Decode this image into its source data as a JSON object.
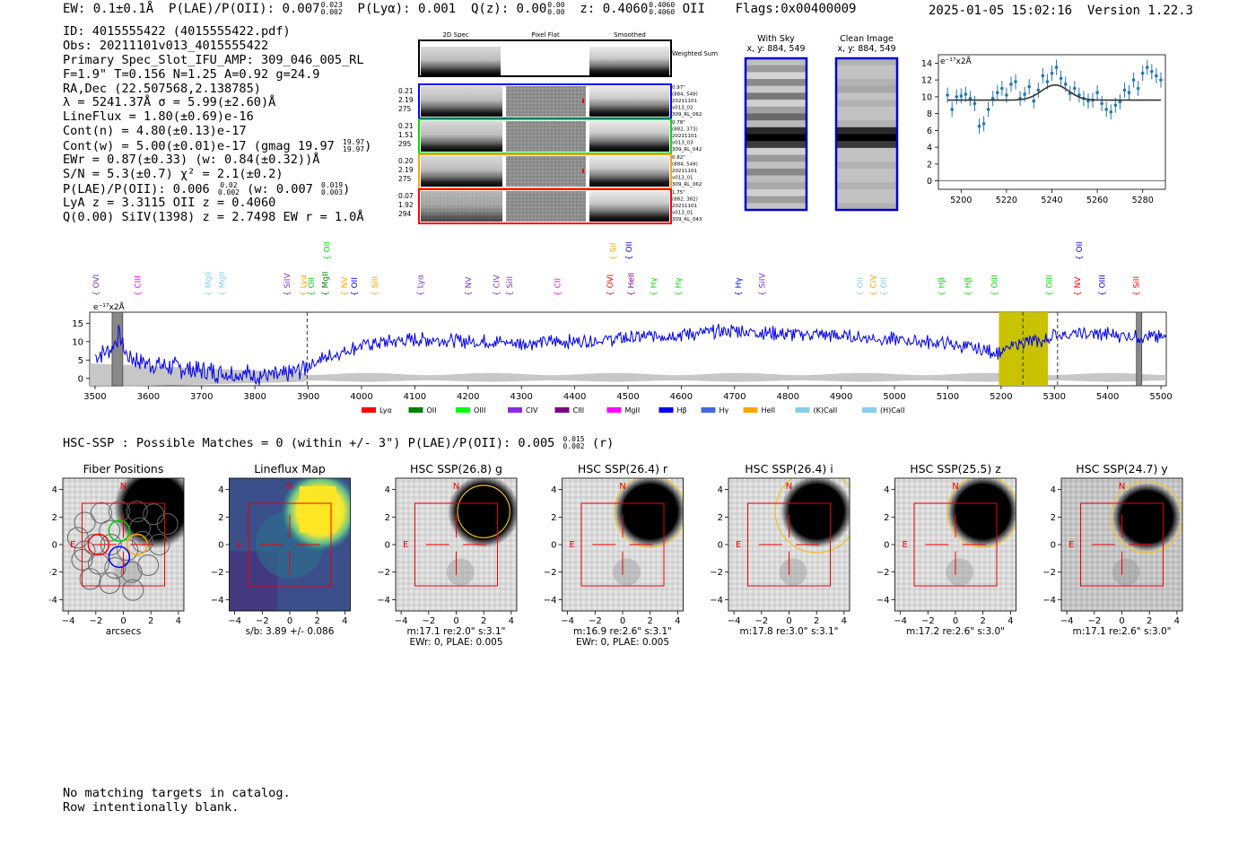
{
  "header": {
    "ew": "EW: 0.1±0.1Å",
    "plae_label": "P(LAE)/P(OII): 0.007",
    "plae_hi": "0.023",
    "plae_lo": "0.002",
    "plya": "P(Lyα): 0.001",
    "qz_label": "Q(z): 0.00",
    "qz_hi": "0.00",
    "qz_lo": "0.00",
    "z_label": "z: 0.4060",
    "z_hi": "0.4060",
    "z_lo": "0.4060",
    "z_line": "OII",
    "flags": "Flags:0x00400009",
    "timestamp": "2025-01-05 15:02:16",
    "version": "Version 1.22.3"
  },
  "info": {
    "id": "ID: 4015555422 (4015555422.pdf)",
    "obs": "Obs: 20211101v013_4015555422",
    "primary": "Primary Spec_Slot_IFU_AMP: 309_046_005_RL",
    "params": "F=1.9\"  T=0.156  N=1.25  A=0.92  g=24.9",
    "radec": "RA,Dec (22.507568,2.138785)",
    "lambda": "λ = 5241.37Å  σ = 5.99(±2.60)Å",
    "lineflux": "LineFlux = 1.80(±0.69)e-16",
    "contn": "Cont(n) = 4.80(±0.13)e-17",
    "contw": "Cont(w) = 5.00(±0.01)e-17 (gmag 19.97",
    "contw_hi": "19.97",
    "contw_lo": "19.97",
    "ewr": "EWr = 0.87(±0.33) (w: 0.84(±0.32))Å",
    "sn": "S/N = 5.3(±0.7)  χ² = 2.1(±0.2)",
    "plae": "P(LAE)/P(OII): 0.006",
    "plae_hi": "0.02",
    "plae_lo": "0.002",
    "plae_w": "(w: 0.007",
    "plae_w_hi": "0.019",
    "plae_w_lo": "0.003",
    "lya": "LyA z = 3.3115  OII z = 0.4060",
    "q": "Q(0.00) SiIV(1398) z = 2.7498  EW r = 1.0Å"
  },
  "cutouts": {
    "col_titles": [
      "2D Spec",
      "Pixel Flat",
      "Smoothed"
    ],
    "weighted_label": "Weighted Sum",
    "rows": [
      {
        "color": "#0000ff",
        "left": [
          "0.21",
          "2.19",
          "275"
        ],
        "right": [
          "0.97\"",
          "(884, 549)",
          "20211101",
          "v013_02",
          "309_RL_062"
        ]
      },
      {
        "color": "#00dd00",
        "left": [
          "0.21",
          "1.51",
          "295"
        ],
        "right": [
          "0.78\"",
          "(882, 373)",
          "20211101",
          "v013_03",
          "309_RL_042"
        ]
      },
      {
        "color": "#ffa500",
        "left": [
          "0.20",
          "2.19",
          "275"
        ],
        "right": [
          "0.82\"",
          "(884, 549)",
          "20211101",
          "v013_01",
          "309_RL_062"
        ]
      },
      {
        "color": "#ff0000",
        "left": [
          "0.07",
          "1.92",
          "294"
        ],
        "right": [
          "1.75\"",
          "(882, 382)",
          "20211101",
          "v013_01",
          "309_RL_043"
        ]
      }
    ]
  },
  "sky": {
    "with_sky_title": "With Sky",
    "with_sky_coords": "x, y: 884, 549",
    "clean_title": "Clean Image",
    "clean_coords": "x, y: 884, 549"
  },
  "chart_data": [
    {
      "type": "scatter",
      "title": "",
      "ylabel": "e⁻¹⁷x2Å",
      "xlim": [
        5190,
        5290
      ],
      "ylim": [
        -1,
        15
      ],
      "xticks": [
        5200,
        5220,
        5240,
        5260,
        5280
      ],
      "yticks": [
        0,
        2,
        4,
        6,
        8,
        10,
        12,
        14
      ],
      "x": [
        5194,
        5196,
        5198,
        5200,
        5202,
        5204,
        5206,
        5208,
        5210,
        5212,
        5214,
        5216,
        5218,
        5220,
        5222,
        5224,
        5226,
        5228,
        5230,
        5232,
        5234,
        5236,
        5238,
        5240,
        5242,
        5244,
        5246,
        5248,
        5250,
        5252,
        5254,
        5256,
        5258,
        5260,
        5262,
        5264,
        5266,
        5268,
        5270,
        5272,
        5274,
        5276,
        5278,
        5280,
        5282,
        5284,
        5286,
        5288
      ],
      "y": [
        10.2,
        8.5,
        10.0,
        10.1,
        10.3,
        9.8,
        9.2,
        6.5,
        6.8,
        8.5,
        9.8,
        10.5,
        11.0,
        10.2,
        11.5,
        11.8,
        9.8,
        10.3,
        11.2,
        9.5,
        10.8,
        12.5,
        11.8,
        12.8,
        13.5,
        12.2,
        11.5,
        10.4,
        11.0,
        10.2,
        9.8,
        9.5,
        9.6,
        10.5,
        9.2,
        8.5,
        8.2,
        9.0,
        9.4,
        10.8,
        10.5,
        12.0,
        11.0,
        12.8,
        13.5,
        13.0,
        12.5,
        12.0
      ],
      "fit": {
        "continuum": 9.6,
        "amplitude": 1.8,
        "center": 5241.37,
        "sigma": 5.99
      }
    },
    {
      "type": "line",
      "title": "",
      "ylabel": "e⁻¹⁷x2Å",
      "xlim": [
        3490,
        5510
      ],
      "ylim": [
        -2,
        18
      ],
      "xticks": [
        3500,
        3600,
        3700,
        3800,
        3900,
        4000,
        4100,
        4200,
        4300,
        4400,
        4500,
        4600,
        4700,
        4800,
        4900,
        5000,
        5100,
        5200,
        5300,
        5400,
        5500
      ],
      "yticks": [
        0,
        5,
        10,
        15
      ],
      "highlight_range": [
        5196,
        5288
      ],
      "dashed_lines": [
        3898,
        5241,
        5306
      ],
      "masked_ranges": [
        [
          3532,
          3552
        ],
        [
          5454,
          5464
        ]
      ],
      "lines": [
        {
          "name": "OVI",
          "x": 3502,
          "color": "#7b2fbf",
          "level": 0
        },
        {
          "name": "CIII",
          "x": 3580,
          "color": "#ff00ff",
          "level": 0
        },
        {
          "name": "MgII",
          "x": 3712,
          "color": "#87ceeb",
          "level": 0
        },
        {
          "name": "MgII",
          "x": 3738,
          "color": "#87ceeb",
          "level": 0
        },
        {
          "name": "SiIV",
          "x": 3860,
          "color": "#7b2fbf",
          "level": 0
        },
        {
          "name": "Lyα",
          "x": 3891,
          "color": "#ffa500",
          "level": 0
        },
        {
          "name": "OII",
          "x": 3906,
          "color": "#00cc00",
          "level": 0
        },
        {
          "name": "MgII",
          "x": 3932,
          "color": "#008000",
          "level": 0
        },
        {
          "name": "OII",
          "x": 3935,
          "color": "#00dd00",
          "level": 1
        },
        {
          "name": "NV",
          "x": 3968,
          "color": "#ffa500",
          "level": 0
        },
        {
          "name": "OII",
          "x": 3987,
          "color": "#0000ff",
          "level": 0
        },
        {
          "name": "SiII",
          "x": 4025,
          "color": "#ffa500",
          "level": 0
        },
        {
          "name": "Lyα",
          "x": 4110,
          "color": "#7b2fbf",
          "level": 0
        },
        {
          "name": "NV",
          "x": 4200,
          "color": "#7b2fbf",
          "level": 0
        },
        {
          "name": "CIV",
          "x": 4253,
          "color": "#7b2fbf",
          "level": 0
        },
        {
          "name": "SiII",
          "x": 4278,
          "color": "#7b2fbf",
          "level": 0
        },
        {
          "name": "CII",
          "x": 4368,
          "color": "#ff00ff",
          "level": 0
        },
        {
          "name": "OVI",
          "x": 4466,
          "color": "#ff0000",
          "level": 0
        },
        {
          "name": "SiIV",
          "x": 4472,
          "color": "#ffa500",
          "level": 1
        },
        {
          "name": "OII",
          "x": 4502,
          "color": "#0000ff",
          "level": 1
        },
        {
          "name": "HeII",
          "x": 4506,
          "color": "#800080",
          "level": 0
        },
        {
          "name": "Hγ",
          "x": 4548,
          "color": "#00dd00",
          "level": 0
        },
        {
          "name": "Hγ",
          "x": 4594,
          "color": "#00dd00",
          "level": 0
        },
        {
          "name": "Hγ",
          "x": 4707,
          "color": "#0000ff",
          "level": 0
        },
        {
          "name": "SiIV",
          "x": 4752,
          "color": "#7b2fbf",
          "level": 0
        },
        {
          "name": "OII",
          "x": 4935,
          "color": "#87ceeb",
          "level": 0
        },
        {
          "name": "CIV",
          "x": 4960,
          "color": "#ffa500",
          "level": 0
        },
        {
          "name": "OII",
          "x": 4980,
          "color": "#87ceeb",
          "level": 0
        },
        {
          "name": "Hβ",
          "x": 5088,
          "color": "#00dd00",
          "level": 0
        },
        {
          "name": "Hβ",
          "x": 5138,
          "color": "#00dd00",
          "level": 0
        },
        {
          "name": "OIII",
          "x": 5188,
          "color": "#00dd00",
          "level": 0
        },
        {
          "name": "OIII",
          "x": 5290,
          "color": "#00dd00",
          "level": 0
        },
        {
          "name": "NV",
          "x": 5343,
          "color": "#ff0000",
          "level": 0
        },
        {
          "name": "OIII",
          "x": 5347,
          "color": "#0000ff",
          "level": 1
        },
        {
          "name": "OIII",
          "x": 5390,
          "color": "#0000ff",
          "level": 0
        },
        {
          "name": "SiII",
          "x": 5454,
          "color": "#ff0000",
          "level": 0
        }
      ],
      "legend": [
        {
          "name": "Lyα",
          "color": "#ff0000"
        },
        {
          "name": "OII",
          "color": "#008000"
        },
        {
          "name": "OIII",
          "color": "#00ff00"
        },
        {
          "name": "CIV",
          "color": "#8a2be2"
        },
        {
          "name": "CIII",
          "color": "#800080"
        },
        {
          "name": "MgII",
          "color": "#ff00ff"
        },
        {
          "name": "Hβ",
          "color": "#0000ff"
        },
        {
          "name": "Hγ",
          "color": "#4169e1"
        },
        {
          "name": "HeII",
          "color": "#ffa500"
        },
        {
          "name": "(K)CaII",
          "color": "#87ceeb"
        },
        {
          "name": "(H)CaII",
          "color": "#87ceeb"
        }
      ],
      "anchors": [
        [
          3500,
          6
        ],
        [
          3530,
          8
        ],
        [
          3545,
          12
        ],
        [
          3560,
          6
        ],
        [
          3600,
          4
        ],
        [
          3650,
          3
        ],
        [
          3700,
          2
        ],
        [
          3750,
          1.5
        ],
        [
          3800,
          1
        ],
        [
          3850,
          0.5
        ],
        [
          3880,
          2
        ],
        [
          3920,
          5
        ],
        [
          3960,
          7
        ],
        [
          4000,
          9
        ],
        [
          4050,
          10
        ],
        [
          4100,
          10.5
        ],
        [
          4150,
          10.5
        ],
        [
          4200,
          10
        ],
        [
          4250,
          10
        ],
        [
          4300,
          9.5
        ],
        [
          4350,
          10
        ],
        [
          4400,
          10
        ],
        [
          4450,
          10.5
        ],
        [
          4500,
          11
        ],
        [
          4550,
          11.5
        ],
        [
          4600,
          12
        ],
        [
          4650,
          12.5
        ],
        [
          4700,
          13
        ],
        [
          4750,
          12.5
        ],
        [
          4800,
          12
        ],
        [
          4850,
          12
        ],
        [
          4900,
          11.5
        ],
        [
          4950,
          11
        ],
        [
          5000,
          10.5
        ],
        [
          5050,
          10
        ],
        [
          5100,
          9.5
        ],
        [
          5150,
          8
        ],
        [
          5200,
          7
        ],
        [
          5240,
          10
        ],
        [
          5280,
          10
        ],
        [
          5300,
          12
        ],
        [
          5350,
          12
        ],
        [
          5400,
          12
        ],
        [
          5450,
          11.5
        ],
        [
          5510,
          11
        ]
      ]
    }
  ],
  "hsc": {
    "title": "HSC-SSP : Possible Matches = 0 (within +/- 3\")  P(LAE)/P(OII): 0.005",
    "title_hi": "0.015",
    "title_lo": "0.002",
    "title_band": "(r)",
    "panels": [
      {
        "title": "Fiber Positions",
        "caption1": "arcsecs",
        "caption2": ""
      },
      {
        "title": "Lineflux Map",
        "caption1": "s/b: 3.89 +/- 0.086",
        "caption2": ""
      },
      {
        "title": "HSC SSP(26.8) g",
        "caption1": "m:17.1  re:2.0\"  s:3.1\"",
        "caption2": "EWr: 0, PLAE: 0.005"
      },
      {
        "title": "HSC SSP(26.4) r",
        "caption1": "m:16.9  re:2.6\"  s:3.1\"",
        "caption2": "EWr: 0, PLAE: 0.005"
      },
      {
        "title": "HSC SSP(26.4) i",
        "caption1": "m:17.8  re:3.0\"  s:3.1\"",
        "caption2": ""
      },
      {
        "title": "HSC SSP(25.5) z",
        "caption1": "m:17.2  re:2.6\"  s:3.0\"",
        "caption2": ""
      },
      {
        "title": "HSC SSP(24.7) y",
        "caption1": "m:17.1  re:2.6\"  s:3.0\"",
        "caption2": ""
      }
    ],
    "ticks": [
      "−4",
      "−2",
      "0",
      "2",
      "4"
    ],
    "yticks": [
      "4",
      "2",
      "0",
      "−2",
      "−4"
    ],
    "north_label": "N",
    "east_label": "E"
  },
  "footer": {
    "line1": "No matching targets in catalog.",
    "line2": "Row intentionally blank."
  }
}
